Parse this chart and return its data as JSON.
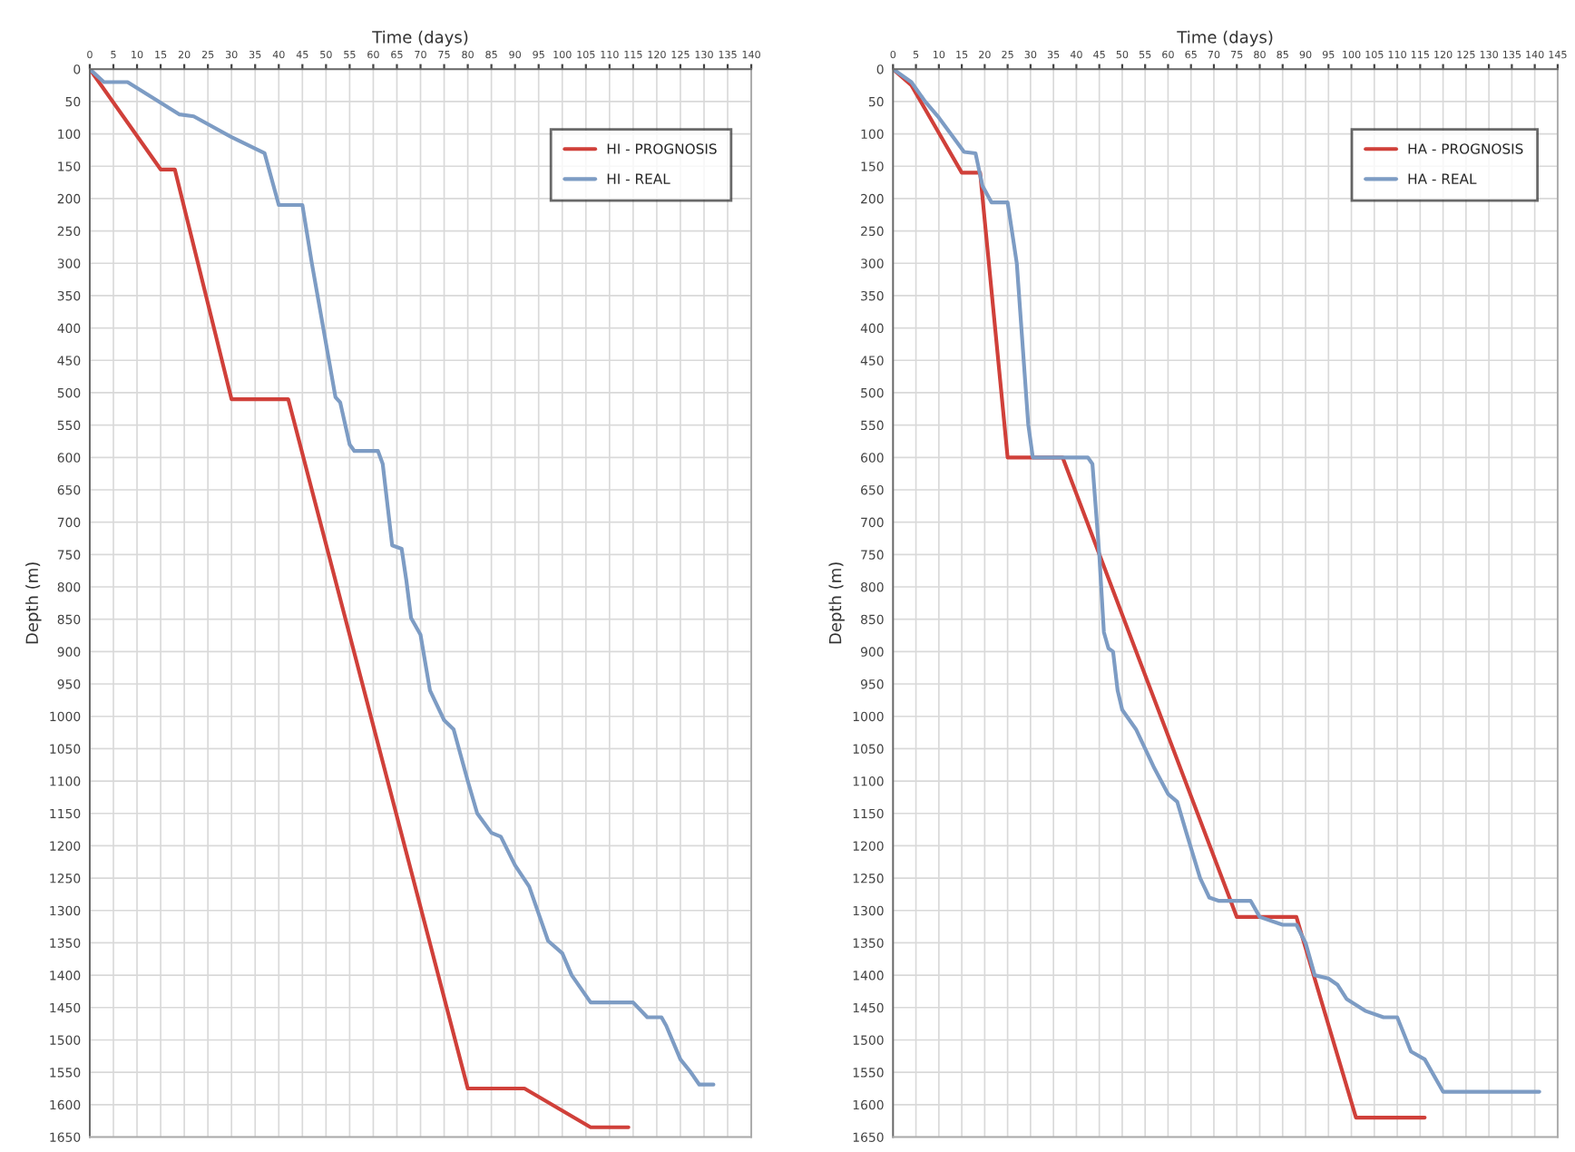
{
  "chart_data": [
    {
      "type": "line",
      "xlabel": "Time (days)",
      "ylabel": "Depth (m)",
      "xlim": [
        0,
        140
      ],
      "ylim": [
        1650,
        0
      ],
      "xticks": [
        0,
        5,
        10,
        15,
        20,
        25,
        30,
        35,
        40,
        45,
        50,
        55,
        60,
        65,
        70,
        75,
        80,
        85,
        90,
        95,
        100,
        105,
        110,
        115,
        120,
        125,
        130,
        135,
        140
      ],
      "yticks": [
        0,
        50,
        100,
        150,
        200,
        250,
        300,
        350,
        400,
        450,
        500,
        550,
        600,
        650,
        700,
        750,
        800,
        850,
        900,
        950,
        1000,
        1050,
        1100,
        1150,
        1200,
        1250,
        1300,
        1350,
        1400,
        1450,
        1500,
        1550,
        1600,
        1650
      ],
      "grid": true,
      "legend": "top right",
      "marker": "none",
      "line_style": "solid",
      "series": [
        {
          "name": "HI - PROGNOSIS",
          "color": "#d0403a",
          "x": [
            0,
            15,
            18,
            30,
            42,
            80,
            92,
            106,
            114
          ],
          "values": [
            0,
            155,
            155,
            510,
            510,
            1575,
            1575,
            1635,
            1635
          ]
        },
        {
          "name": "HI - REAL",
          "color": "#7d9cc4",
          "x": [
            0,
            3,
            8,
            19,
            22,
            30,
            37,
            40,
            45,
            47,
            52,
            53,
            55,
            56,
            61,
            62,
            64,
            66,
            67,
            68,
            70,
            72,
            75,
            77,
            80,
            82,
            85,
            87,
            90,
            93,
            97,
            100,
            102,
            106,
            115,
            118,
            121,
            122,
            125,
            127,
            129,
            132
          ],
          "values": [
            0,
            20,
            20,
            70,
            73,
            105,
            130,
            210,
            210,
            300,
            507,
            515,
            580,
            590,
            590,
            610,
            736,
            741,
            790,
            848,
            874,
            960,
            1006,
            1020,
            1100,
            1150,
            1180,
            1186,
            1230,
            1263,
            1347,
            1366,
            1400,
            1442,
            1442,
            1465,
            1465,
            1478,
            1530,
            1548,
            1569,
            1569
          ]
        }
      ]
    },
    {
      "type": "line",
      "xlabel": "Time (days)",
      "ylabel": "Depth (m)",
      "xlim": [
        0,
        145
      ],
      "ylim": [
        1650,
        0
      ],
      "xticks": [
        0,
        5,
        10,
        15,
        20,
        25,
        30,
        35,
        40,
        45,
        50,
        55,
        60,
        65,
        70,
        75,
        80,
        85,
        90,
        95,
        100,
        105,
        110,
        115,
        120,
        125,
        130,
        135,
        140,
        145
      ],
      "yticks": [
        0,
        50,
        100,
        150,
        200,
        250,
        300,
        350,
        400,
        450,
        500,
        550,
        600,
        650,
        700,
        750,
        800,
        850,
        900,
        950,
        1000,
        1050,
        1100,
        1150,
        1200,
        1250,
        1300,
        1350,
        1400,
        1450,
        1500,
        1550,
        1600,
        1650
      ],
      "grid": true,
      "legend": "top right",
      "marker": "none",
      "line_style": "solid",
      "series": [
        {
          "name": "HA - PROGNOSIS",
          "color": "#d0403a",
          "x": [
            0,
            4,
            15,
            19,
            25,
            37,
            75,
            88,
            101,
            116
          ],
          "values": [
            0,
            25,
            160,
            160,
            600,
            600,
            1310,
            1310,
            1620,
            1620
          ]
        },
        {
          "name": "HA - REAL",
          "color": "#7d9cc4",
          "x": [
            0,
            4,
            7,
            10,
            15.5,
            18,
            19.5,
            21.5,
            25,
            27,
            29.5,
            30.5,
            42.5,
            43.5,
            45,
            46,
            47,
            48,
            49,
            50,
            53,
            55,
            57,
            60,
            62,
            64,
            67,
            69,
            71,
            78,
            80,
            85,
            88,
            90,
            92,
            95,
            97,
            99,
            103,
            107,
            110,
            113,
            116,
            120,
            141
          ],
          "values": [
            0,
            20,
            50,
            75,
            128,
            130,
            180,
            206,
            206,
            300,
            549,
            600,
            600,
            610,
            750,
            870,
            895,
            900,
            960,
            990,
            1020,
            1050,
            1080,
            1120,
            1132,
            1180,
            1250,
            1280,
            1285,
            1285,
            1310,
            1322,
            1322,
            1350,
            1400,
            1405,
            1415,
            1437,
            1455,
            1465,
            1465,
            1518,
            1530,
            1580,
            1580
          ]
        }
      ]
    }
  ]
}
